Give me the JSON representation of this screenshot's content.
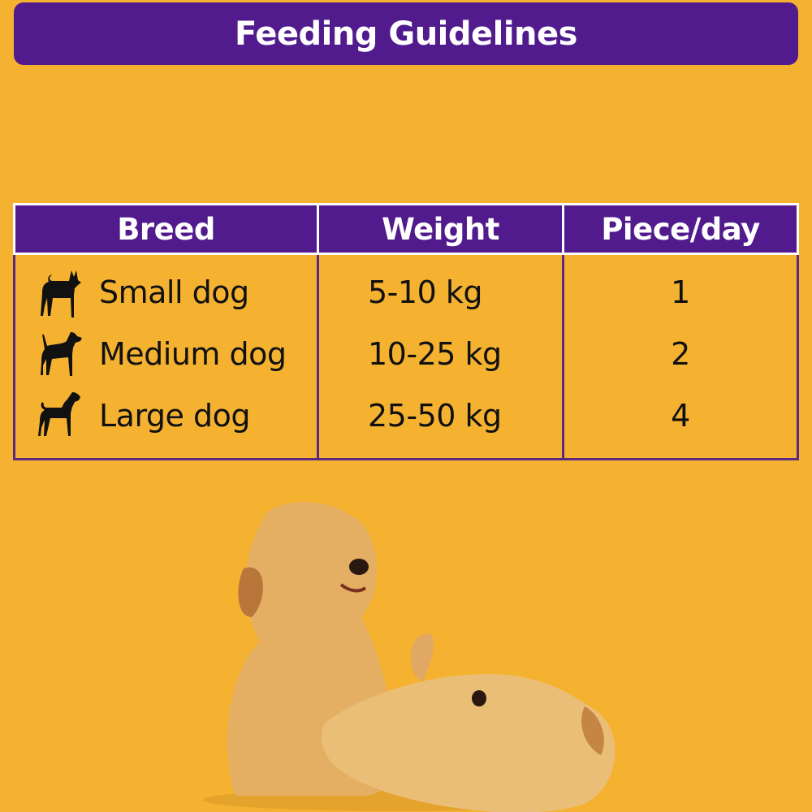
{
  "title": "Feeding Guidelines",
  "table": {
    "headers": [
      "Breed",
      "Weight",
      "Piece/day"
    ],
    "rows": [
      {
        "breed": "Small dog",
        "icon": "small-dog-silhouette-icon",
        "weight": "5-10 kg",
        "pieces": "1"
      },
      {
        "breed": "Medium dog",
        "icon": "medium-dog-silhouette-icon",
        "weight": "10-25 kg",
        "pieces": "2"
      },
      {
        "breed": "Large dog",
        "icon": "large-dog-silhouette-icon",
        "weight": "25-50 kg",
        "pieces": "4"
      }
    ]
  },
  "colors": {
    "background": "#F5B230",
    "accent": "#511B8E",
    "text": "#111111"
  }
}
